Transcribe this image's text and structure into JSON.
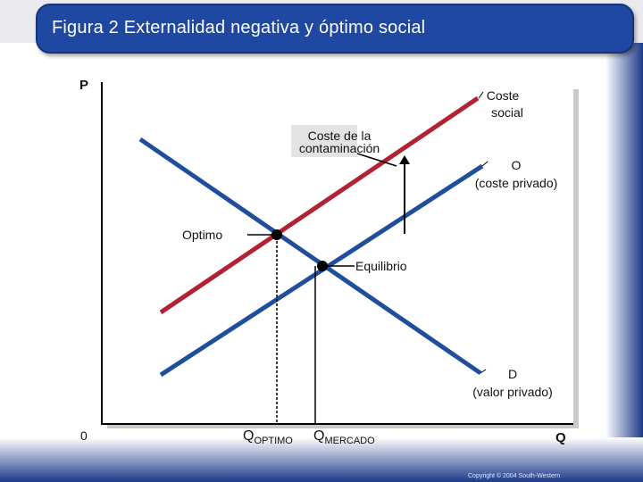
{
  "title": "Figura 2 Externalidad negativa y óptimo social",
  "axes": {
    "y_label": "P",
    "x_label": "Q",
    "origin": "0"
  },
  "curves": {
    "social_cost": {
      "line1": "Coste",
      "line2": "social",
      "color": "#b22233"
    },
    "supply": {
      "line1": "O",
      "line2": "(coste privado)",
      "color": "#1f4f9c"
    },
    "demand": {
      "line1": "D",
      "line2": "(valor privado)",
      "color": "#1f4f9c"
    }
  },
  "annotations": {
    "pollution_cost_line1": "Coste de la",
    "pollution_cost_line2": "contaminación",
    "optimum": "Optimo",
    "equilibrium": "Equilibrio"
  },
  "quantities": {
    "q_optimum_main": "Q",
    "q_optimum_sub": "OPTIMO",
    "q_market_main": "Q",
    "q_market_sub": "MERCADO"
  },
  "footer": {
    "copyright": "Copyright © 2004 South-Western"
  }
}
